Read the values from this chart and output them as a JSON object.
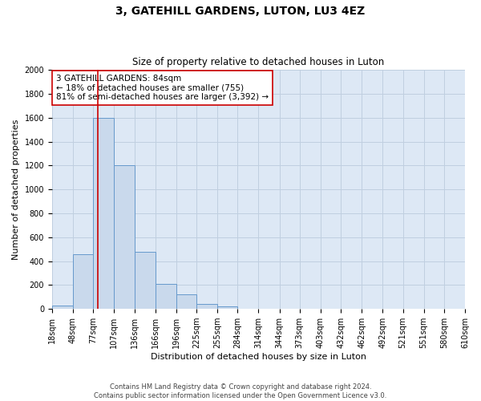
{
  "title": "3, GATEHILL GARDENS, LUTON, LU3 4EZ",
  "subtitle": "Size of property relative to detached houses in Luton",
  "xlabel": "Distribution of detached houses by size in Luton",
  "ylabel": "Number of detached properties",
  "bin_labels": [
    "18sqm",
    "48sqm",
    "77sqm",
    "107sqm",
    "136sqm",
    "166sqm",
    "196sqm",
    "225sqm",
    "255sqm",
    "284sqm",
    "314sqm",
    "344sqm",
    "373sqm",
    "403sqm",
    "432sqm",
    "462sqm",
    "492sqm",
    "521sqm",
    "551sqm",
    "580sqm",
    "610sqm"
  ],
  "bin_edges": [
    18,
    48,
    77,
    107,
    136,
    166,
    196,
    225,
    255,
    284,
    314,
    344,
    373,
    403,
    432,
    462,
    492,
    521,
    551,
    580,
    610
  ],
  "bar_heights": [
    30,
    460,
    1600,
    1200,
    480,
    210,
    120,
    45,
    20,
    0,
    0,
    0,
    0,
    0,
    0,
    0,
    0,
    0,
    0,
    0
  ],
  "bar_color": "#c9d9ec",
  "bar_edge_color": "#6699cc",
  "property_line_x": 84,
  "red_line_color": "#cc0000",
  "annotation_line1": "3 GATEHILL GARDENS: 84sqm",
  "annotation_line2": "← 18% of detached houses are smaller (755)",
  "annotation_line3": "81% of semi-detached houses are larger (3,392) →",
  "annotation_box_color": "#ffffff",
  "annotation_box_edge": "#cc0000",
  "ylim": [
    0,
    2000
  ],
  "yticks": [
    0,
    200,
    400,
    600,
    800,
    1000,
    1200,
    1400,
    1600,
    1800,
    2000
  ],
  "footer_line1": "Contains HM Land Registry data © Crown copyright and database right 2024.",
  "footer_line2": "Contains public sector information licensed under the Open Government Licence v3.0.",
  "bg_color": "#ffffff",
  "plot_bg_color": "#dde8f5",
  "grid_color": "#c0cfe0",
  "title_fontsize": 10,
  "subtitle_fontsize": 8.5,
  "axis_label_fontsize": 8,
  "tick_fontsize": 7,
  "annotation_fontsize": 7.5,
  "footer_fontsize": 6
}
